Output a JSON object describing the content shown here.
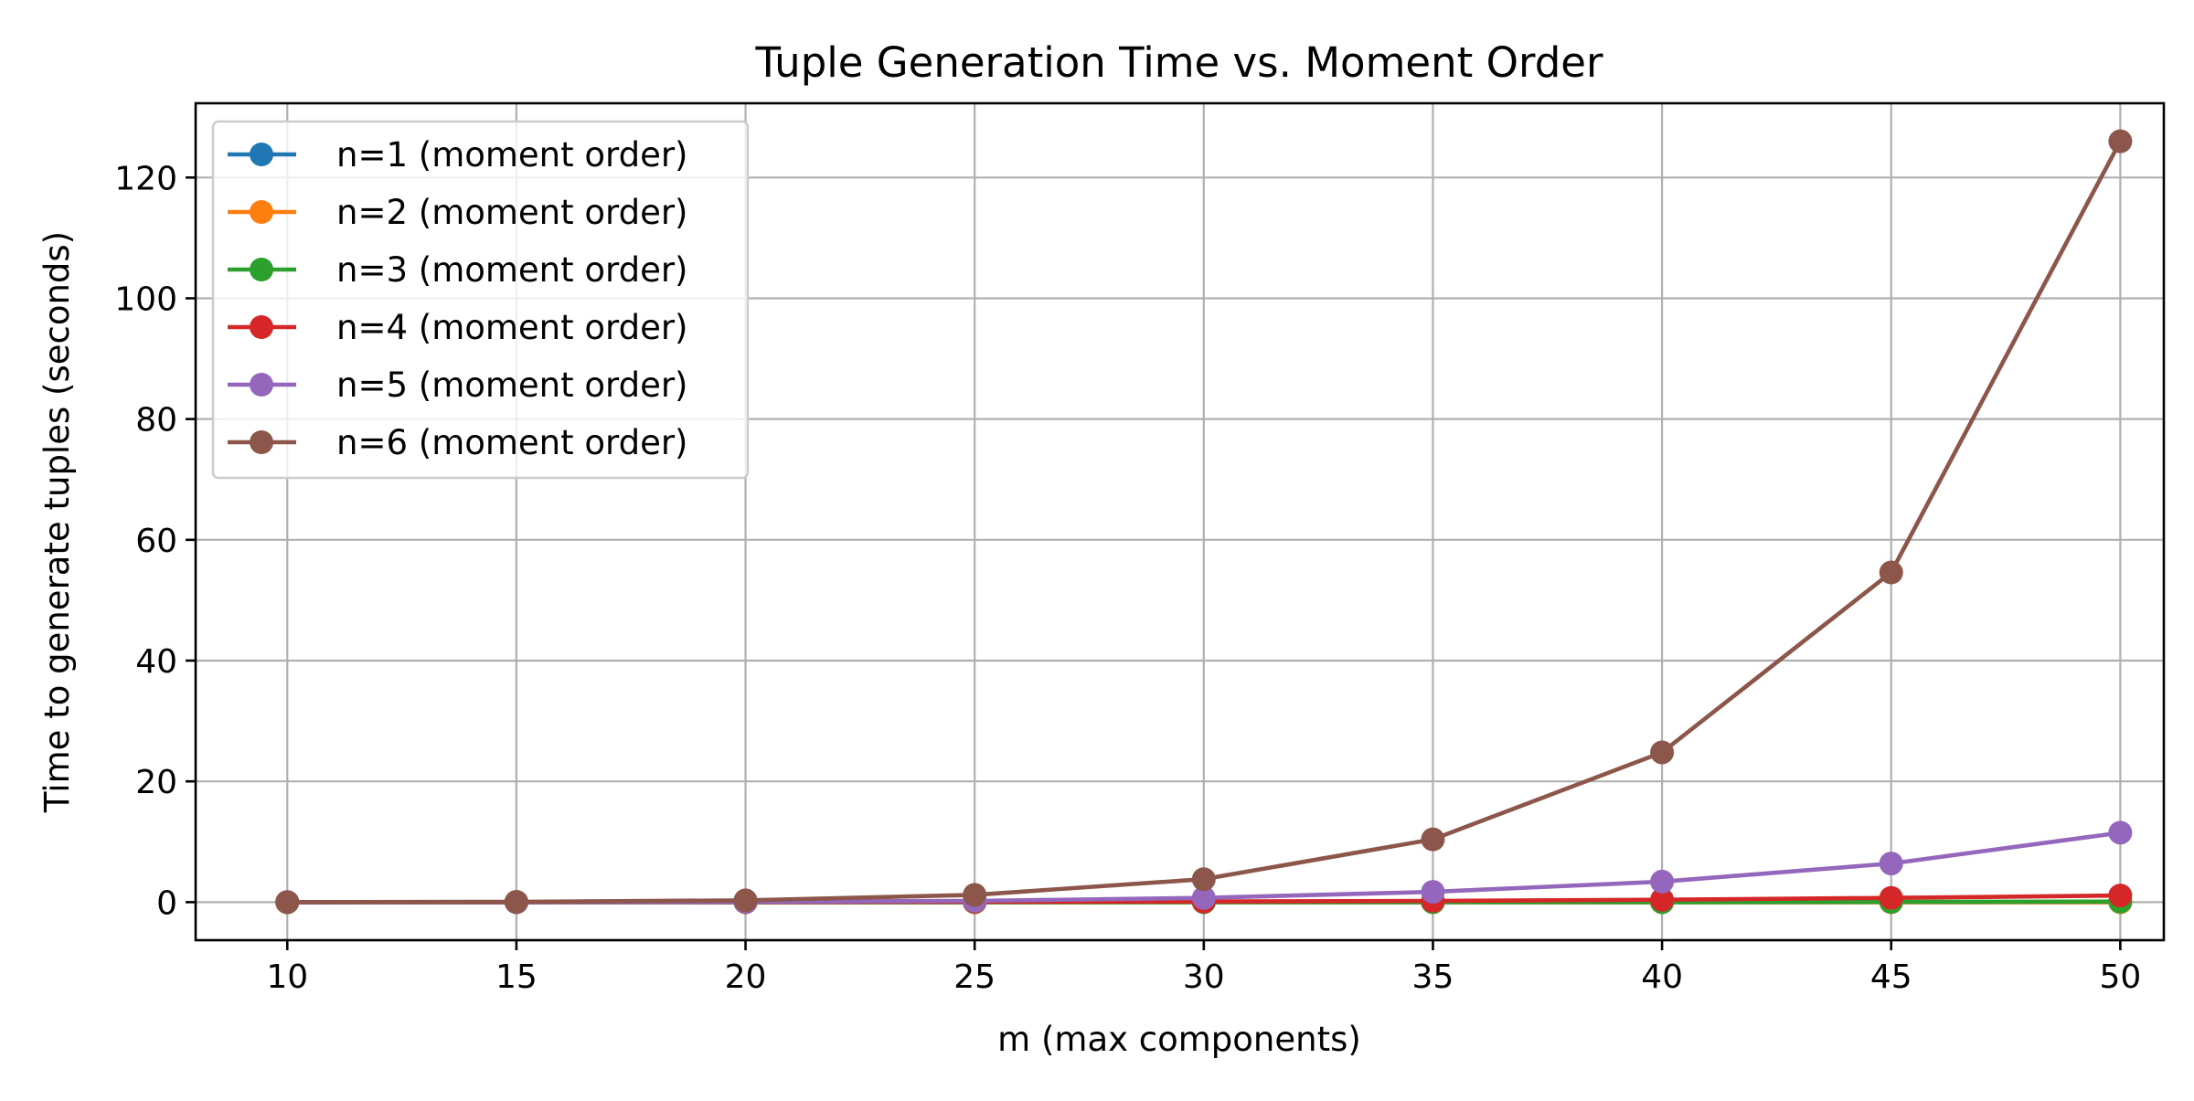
{
  "chart_data": {
    "type": "line",
    "title": "Tuple Generation Time vs. Moment Order",
    "xlabel": "m (max components)",
    "ylabel": "Time to generate tuples (seconds)",
    "x": [
      10,
      15,
      20,
      25,
      30,
      35,
      40,
      45,
      50
    ],
    "xlim": [
      8,
      50.95
    ],
    "ylim": [
      -6.3,
      132.3
    ],
    "xticks": [
      10,
      15,
      20,
      25,
      30,
      35,
      40,
      45,
      50
    ],
    "xtick_labels": [
      "10",
      "15",
      "20",
      "25",
      "30",
      "35",
      "40",
      "45",
      "50"
    ],
    "yticks": [
      0,
      20,
      40,
      60,
      80,
      100,
      120
    ],
    "ytick_labels": [
      "0",
      "20",
      "40",
      "60",
      "80",
      "100",
      "120"
    ],
    "grid": true,
    "legend_position": "top-left",
    "series": [
      {
        "name": "n=1 (moment order)",
        "color": "#1f77b4",
        "values": [
          0.0,
          0.0,
          0.0,
          0.0,
          0.0,
          0.0,
          0.0,
          0.0,
          0.0
        ]
      },
      {
        "name": "n=2 (moment order)",
        "color": "#ff7f0e",
        "values": [
          0.0,
          0.0,
          0.0,
          0.0,
          0.0,
          0.0,
          0.0,
          0.0,
          0.0
        ]
      },
      {
        "name": "n=3 (moment order)",
        "color": "#2ca02c",
        "values": [
          0.0,
          0.0,
          0.0,
          0.0,
          0.0,
          0.0,
          0.0,
          0.05,
          0.1
        ]
      },
      {
        "name": "n=4 (moment order)",
        "color": "#d62728",
        "values": [
          0.0,
          0.0,
          0.01,
          0.05,
          0.1,
          0.2,
          0.4,
          0.7,
          1.1
        ]
      },
      {
        "name": "n=5 (moment order)",
        "color": "#9467bd",
        "values": [
          0.0,
          0.0,
          0.05,
          0.2,
          0.7,
          1.7,
          3.4,
          6.4,
          11.5
        ]
      },
      {
        "name": "n=6 (moment order)",
        "color": "#8c564b",
        "values": [
          0.0,
          0.05,
          0.3,
          1.2,
          3.8,
          10.4,
          24.8,
          54.6,
          126.0
        ]
      }
    ]
  }
}
